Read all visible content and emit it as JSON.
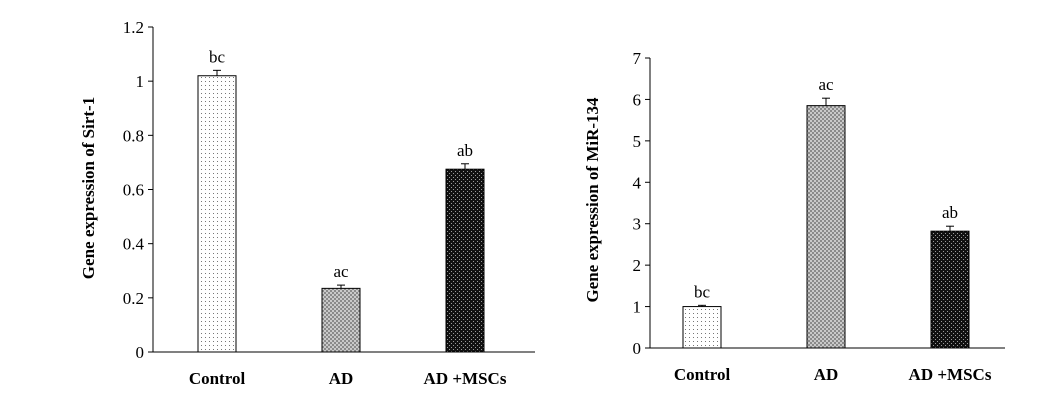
{
  "chart_data": [
    {
      "type": "bar",
      "categories": [
        "Control",
        "AD",
        "AD +MSCs"
      ],
      "values": [
        1.02,
        0.235,
        0.675
      ],
      "errors": [
        0.02,
        0.012,
        0.02
      ],
      "data_labels": [
        "bc",
        "ac",
        "ab"
      ],
      "title": "",
      "xlabel": "",
      "ylabel": "Gene expression of Sirt-1",
      "ylim": [
        0,
        1.2
      ],
      "yticks": [
        0,
        0.2,
        0.4,
        0.6,
        0.8,
        1,
        1.2
      ],
      "ytick_labels": [
        "0",
        "0.2",
        "0.4",
        "0.6",
        "0.8",
        "1",
        "1.2"
      ],
      "grid": false,
      "fills": [
        "dots-light",
        "grid-gray",
        "grid-dark"
      ]
    },
    {
      "type": "bar",
      "categories": [
        "Control",
        "AD",
        "AD +MSCs"
      ],
      "values": [
        1.0,
        5.85,
        2.82
      ],
      "errors": [
        0.03,
        0.18,
        0.12
      ],
      "data_labels": [
        "bc",
        "ac",
        "ab"
      ],
      "title": "",
      "xlabel": "",
      "ylabel": "Gene expression of  MiR-134",
      "ylim": [
        0,
        7
      ],
      "yticks": [
        0,
        1,
        2,
        3,
        4,
        5,
        6,
        7
      ],
      "ytick_labels": [
        "0",
        "1",
        "2",
        "3",
        "4",
        "5",
        "6",
        "7"
      ],
      "grid": false,
      "fills": [
        "dots-light",
        "grid-gray",
        "grid-dark"
      ]
    }
  ]
}
